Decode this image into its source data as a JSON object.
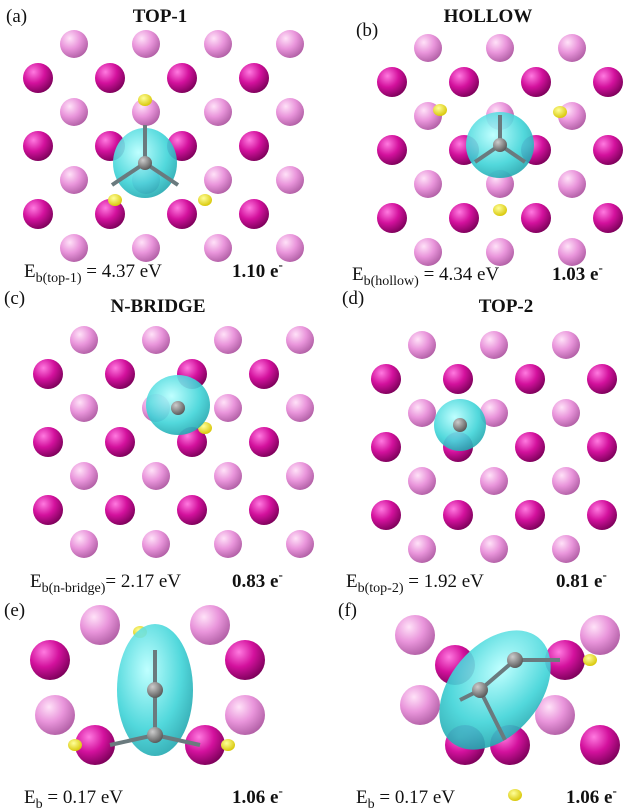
{
  "panels": [
    {
      "label": "(a)",
      "title": "TOP-1",
      "energy": {
        "symbol": "E",
        "sub": "b(top-1)",
        "value": " = 4.37 eV"
      },
      "charge": {
        "value": "1.10 e",
        "sup": "-"
      }
    },
    {
      "label": "(b)",
      "title": "HOLLOW",
      "energy": {
        "symbol": "E",
        "sub": "b(hollow)",
        "value": " = 4.34 eV"
      },
      "charge": {
        "value": "1.03 e",
        "sup": "-"
      }
    },
    {
      "label": "(c)",
      "title": "N-BRIDGE",
      "energy": {
        "symbol": "E",
        "sub": "b(n-bridge)",
        "value": "= 2.17 eV"
      },
      "charge": {
        "value": "0.83 e",
        "sup": "-"
      }
    },
    {
      "label": "(d)",
      "title": "TOP-2",
      "energy": {
        "symbol": "E",
        "sub": "b(top-2)",
        "value": " = 1.92 eV"
      },
      "charge": {
        "value": "0.81 e",
        "sup": "-"
      }
    },
    {
      "label": "(e)",
      "energy": {
        "symbol": "E",
        "sub": "b",
        "value": " = 0.17 eV"
      },
      "charge": {
        "value": "1.06 e",
        "sup": "-"
      }
    },
    {
      "label": "(f)",
      "energy": {
        "symbol": "E",
        "sub": "b",
        "value": " = 0.17 eV"
      },
      "charge": {
        "value": "1.06 e",
        "sup": "-"
      }
    }
  ]
}
